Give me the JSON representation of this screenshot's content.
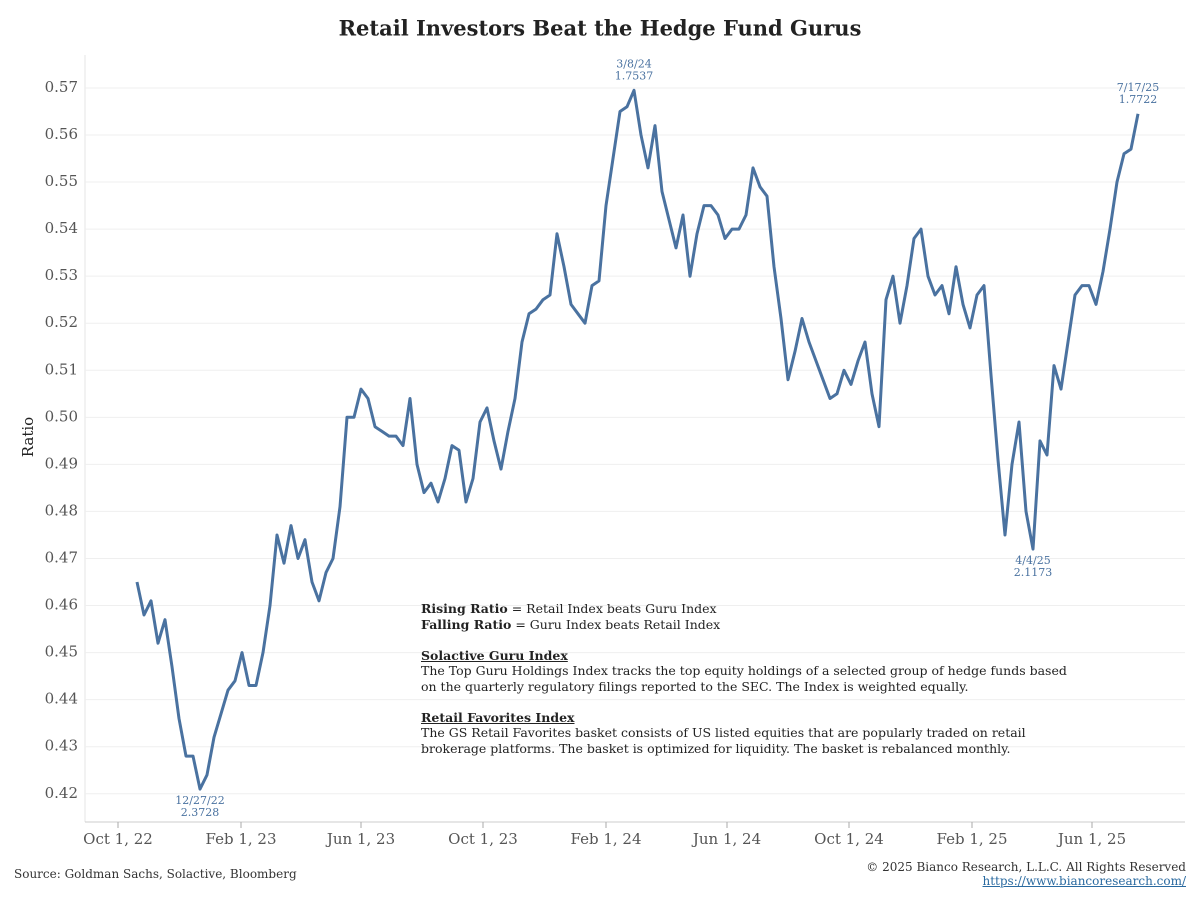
{
  "chart_data": {
    "type": "line",
    "title": "Retail Investors Beat the Hedge Fund Gurus",
    "y_label": "Ratio",
    "x": [
      "2022-10-20",
      "2022-10-27",
      "2022-11-03",
      "2022-11-10",
      "2022-11-17",
      "2022-11-24",
      "2022-12-01",
      "2022-12-08",
      "2022-12-15",
      "2022-12-22",
      "2022-12-29",
      "2023-01-05",
      "2023-01-12",
      "2023-01-19",
      "2023-01-26",
      "2023-02-02",
      "2023-02-09",
      "2023-02-16",
      "2023-02-23",
      "2023-03-02",
      "2023-03-09",
      "2023-03-16",
      "2023-03-23",
      "2023-03-30",
      "2023-04-06",
      "2023-04-13",
      "2023-04-20",
      "2023-04-27",
      "2023-05-04",
      "2023-05-11",
      "2023-05-18",
      "2023-05-25",
      "2023-06-01",
      "2023-06-08",
      "2023-06-15",
      "2023-06-22",
      "2023-06-29",
      "2023-07-06",
      "2023-07-13",
      "2023-07-20",
      "2023-07-27",
      "2023-08-03",
      "2023-08-10",
      "2023-08-17",
      "2023-08-24",
      "2023-08-31",
      "2023-09-07",
      "2023-09-14",
      "2023-09-21",
      "2023-09-28",
      "2023-10-05",
      "2023-10-12",
      "2023-10-19",
      "2023-10-26",
      "2023-11-02",
      "2023-11-09",
      "2023-11-16",
      "2023-11-23",
      "2023-11-30",
      "2023-12-07",
      "2023-12-14",
      "2023-12-21",
      "2023-12-28",
      "2024-01-04",
      "2024-01-11",
      "2024-01-18",
      "2024-01-25",
      "2024-02-01",
      "2024-02-08",
      "2024-02-15",
      "2024-02-22",
      "2024-02-29",
      "2024-03-07",
      "2024-03-14",
      "2024-03-21",
      "2024-03-28",
      "2024-04-04",
      "2024-04-11",
      "2024-04-18",
      "2024-04-25",
      "2024-05-02",
      "2024-05-09",
      "2024-05-16",
      "2024-05-23",
      "2024-05-30",
      "2024-06-06",
      "2024-06-13",
      "2024-06-20",
      "2024-06-27",
      "2024-07-04",
      "2024-07-11",
      "2024-07-18",
      "2024-07-25",
      "2024-08-01",
      "2024-08-08",
      "2024-08-15",
      "2024-08-22",
      "2024-08-29",
      "2024-09-05",
      "2024-09-12",
      "2024-09-19",
      "2024-09-26",
      "2024-10-03",
      "2024-10-10",
      "2024-10-17",
      "2024-10-24",
      "2024-10-31",
      "2024-11-07",
      "2024-11-14",
      "2024-11-21",
      "2024-11-28",
      "2024-12-05",
      "2024-12-12",
      "2024-12-19",
      "2024-12-26",
      "2025-01-02",
      "2025-01-09",
      "2025-01-16",
      "2025-01-23",
      "2025-01-30",
      "2025-02-06",
      "2025-02-13",
      "2025-02-20",
      "2025-02-27",
      "2025-03-06",
      "2025-03-13",
      "2025-03-20",
      "2025-03-27",
      "2025-04-03",
      "2025-04-10",
      "2025-04-17",
      "2025-04-24",
      "2025-05-01",
      "2025-05-08",
      "2025-05-15",
      "2025-05-22",
      "2025-05-29",
      "2025-06-05",
      "2025-06-12",
      "2025-06-19",
      "2025-06-26",
      "2025-07-03",
      "2025-07-10",
      "2025-07-17"
    ],
    "series": [
      {
        "name": "Ratio",
        "color": "#4a72a0",
        "values": [
          0.465,
          0.458,
          0.461,
          0.452,
          0.457,
          0.447,
          0.436,
          0.428,
          0.428,
          0.421,
          0.424,
          0.432,
          0.437,
          0.442,
          0.444,
          0.45,
          0.443,
          0.443,
          0.45,
          0.46,
          0.475,
          0.469,
          0.477,
          0.47,
          0.474,
          0.465,
          0.461,
          0.467,
          0.47,
          0.481,
          0.5,
          0.5,
          0.506,
          0.504,
          0.498,
          0.497,
          0.496,
          0.496,
          0.494,
          0.504,
          0.49,
          0.484,
          0.486,
          0.482,
          0.487,
          0.494,
          0.493,
          0.482,
          0.487,
          0.499,
          0.502,
          0.495,
          0.489,
          0.497,
          0.504,
          0.516,
          0.522,
          0.523,
          0.525,
          0.526,
          0.539,
          0.532,
          0.524,
          0.522,
          0.52,
          0.528,
          0.529,
          0.545,
          0.555,
          0.565,
          0.566,
          0.5695,
          0.56,
          0.553,
          0.562,
          0.548,
          0.542,
          0.536,
          0.543,
          0.53,
          0.539,
          0.545,
          0.545,
          0.543,
          0.538,
          0.54,
          0.54,
          0.543,
          0.553,
          0.549,
          0.547,
          0.532,
          0.521,
          0.508,
          0.514,
          0.521,
          0.516,
          0.512,
          0.508,
          0.504,
          0.505,
          0.51,
          0.507,
          0.512,
          0.516,
          0.505,
          0.498,
          0.525,
          0.53,
          0.52,
          0.528,
          0.538,
          0.54,
          0.53,
          0.526,
          0.528,
          0.522,
          0.532,
          0.524,
          0.519,
          0.526,
          0.528,
          0.509,
          0.491,
          0.475,
          0.49,
          0.499,
          0.48,
          0.472,
          0.495,
          0.492,
          0.511,
          0.506,
          0.516,
          0.526,
          0.528,
          0.528,
          0.524,
          0.531,
          0.54,
          0.55,
          0.556,
          0.557,
          0.5645
        ]
      }
    ],
    "xlim": [
      "2022-08-29",
      "2025-09-02"
    ],
    "xticks": [
      {
        "value": "2022-10-01",
        "label": "Oct 1, 22"
      },
      {
        "value": "2023-02-01",
        "label": "Feb 1, 23"
      },
      {
        "value": "2023-06-01",
        "label": "Jun 1, 23"
      },
      {
        "value": "2023-10-01",
        "label": "Oct 1, 23"
      },
      {
        "value": "2024-02-01",
        "label": "Feb 1, 24"
      },
      {
        "value": "2024-06-01",
        "label": "Jun 1, 24"
      },
      {
        "value": "2024-10-01",
        "label": "Oct 1, 24"
      },
      {
        "value": "2025-02-01",
        "label": "Feb 1, 25"
      },
      {
        "value": "2025-06-01",
        "label": "Jun 1, 25"
      }
    ],
    "ylim": [
      0.414,
      0.577
    ],
    "yticks": [
      0.42,
      0.43,
      0.44,
      0.45,
      0.46,
      0.47,
      0.48,
      0.49,
      {
        "value": 0.5,
        "label": "0.50"
      },
      0.51,
      0.52,
      0.53,
      0.54,
      0.55,
      0.56,
      0.57
    ],
    "grid": true,
    "annotations": [
      {
        "date_label": "12/27/22",
        "value_label": "2.3728",
        "x": "2022-12-22",
        "y": 0.421,
        "position": "below"
      },
      {
        "date_label": "3/8/24",
        "value_label": "1.7537",
        "x": "2024-02-29",
        "y": 0.5695,
        "position": "above"
      },
      {
        "date_label": "4/4/25",
        "value_label": "2.1173",
        "x": "2025-04-03",
        "y": 0.472,
        "position": "below"
      },
      {
        "date_label": "7/17/25",
        "value_label": "1.7722",
        "x": "2025-07-17",
        "y": 0.5645,
        "position": "above"
      }
    ],
    "notes": {
      "legend": [
        {
          "bold": "Rising Ratio",
          "text": "= Retail Index beats Guru Index"
        },
        {
          "bold": "Falling Ratio",
          "text": "= Guru Index beats Retail Index"
        }
      ],
      "sections": [
        {
          "heading": "Solactive Guru Index",
          "text": "The Top Guru Holdings Index tracks the top equity holdings of a selected group of hedge funds based on the quarterly regulatory filings reported to the SEC. The Index is weighted equally."
        },
        {
          "heading": "Retail Favorites Index",
          "text": "The GS Retail Favorites basket consists of US listed equities that are popularly traded on retail brokerage platforms. The basket is optimized for liquidity. The basket is rebalanced monthly."
        }
      ]
    },
    "source": "Source: Goldman Sachs, Solactive, Bloomberg",
    "copyright": "© 2025 Bianco Research, L.L.C. All Rights Reserved",
    "url": "https://www.biancoresearch.com/"
  }
}
